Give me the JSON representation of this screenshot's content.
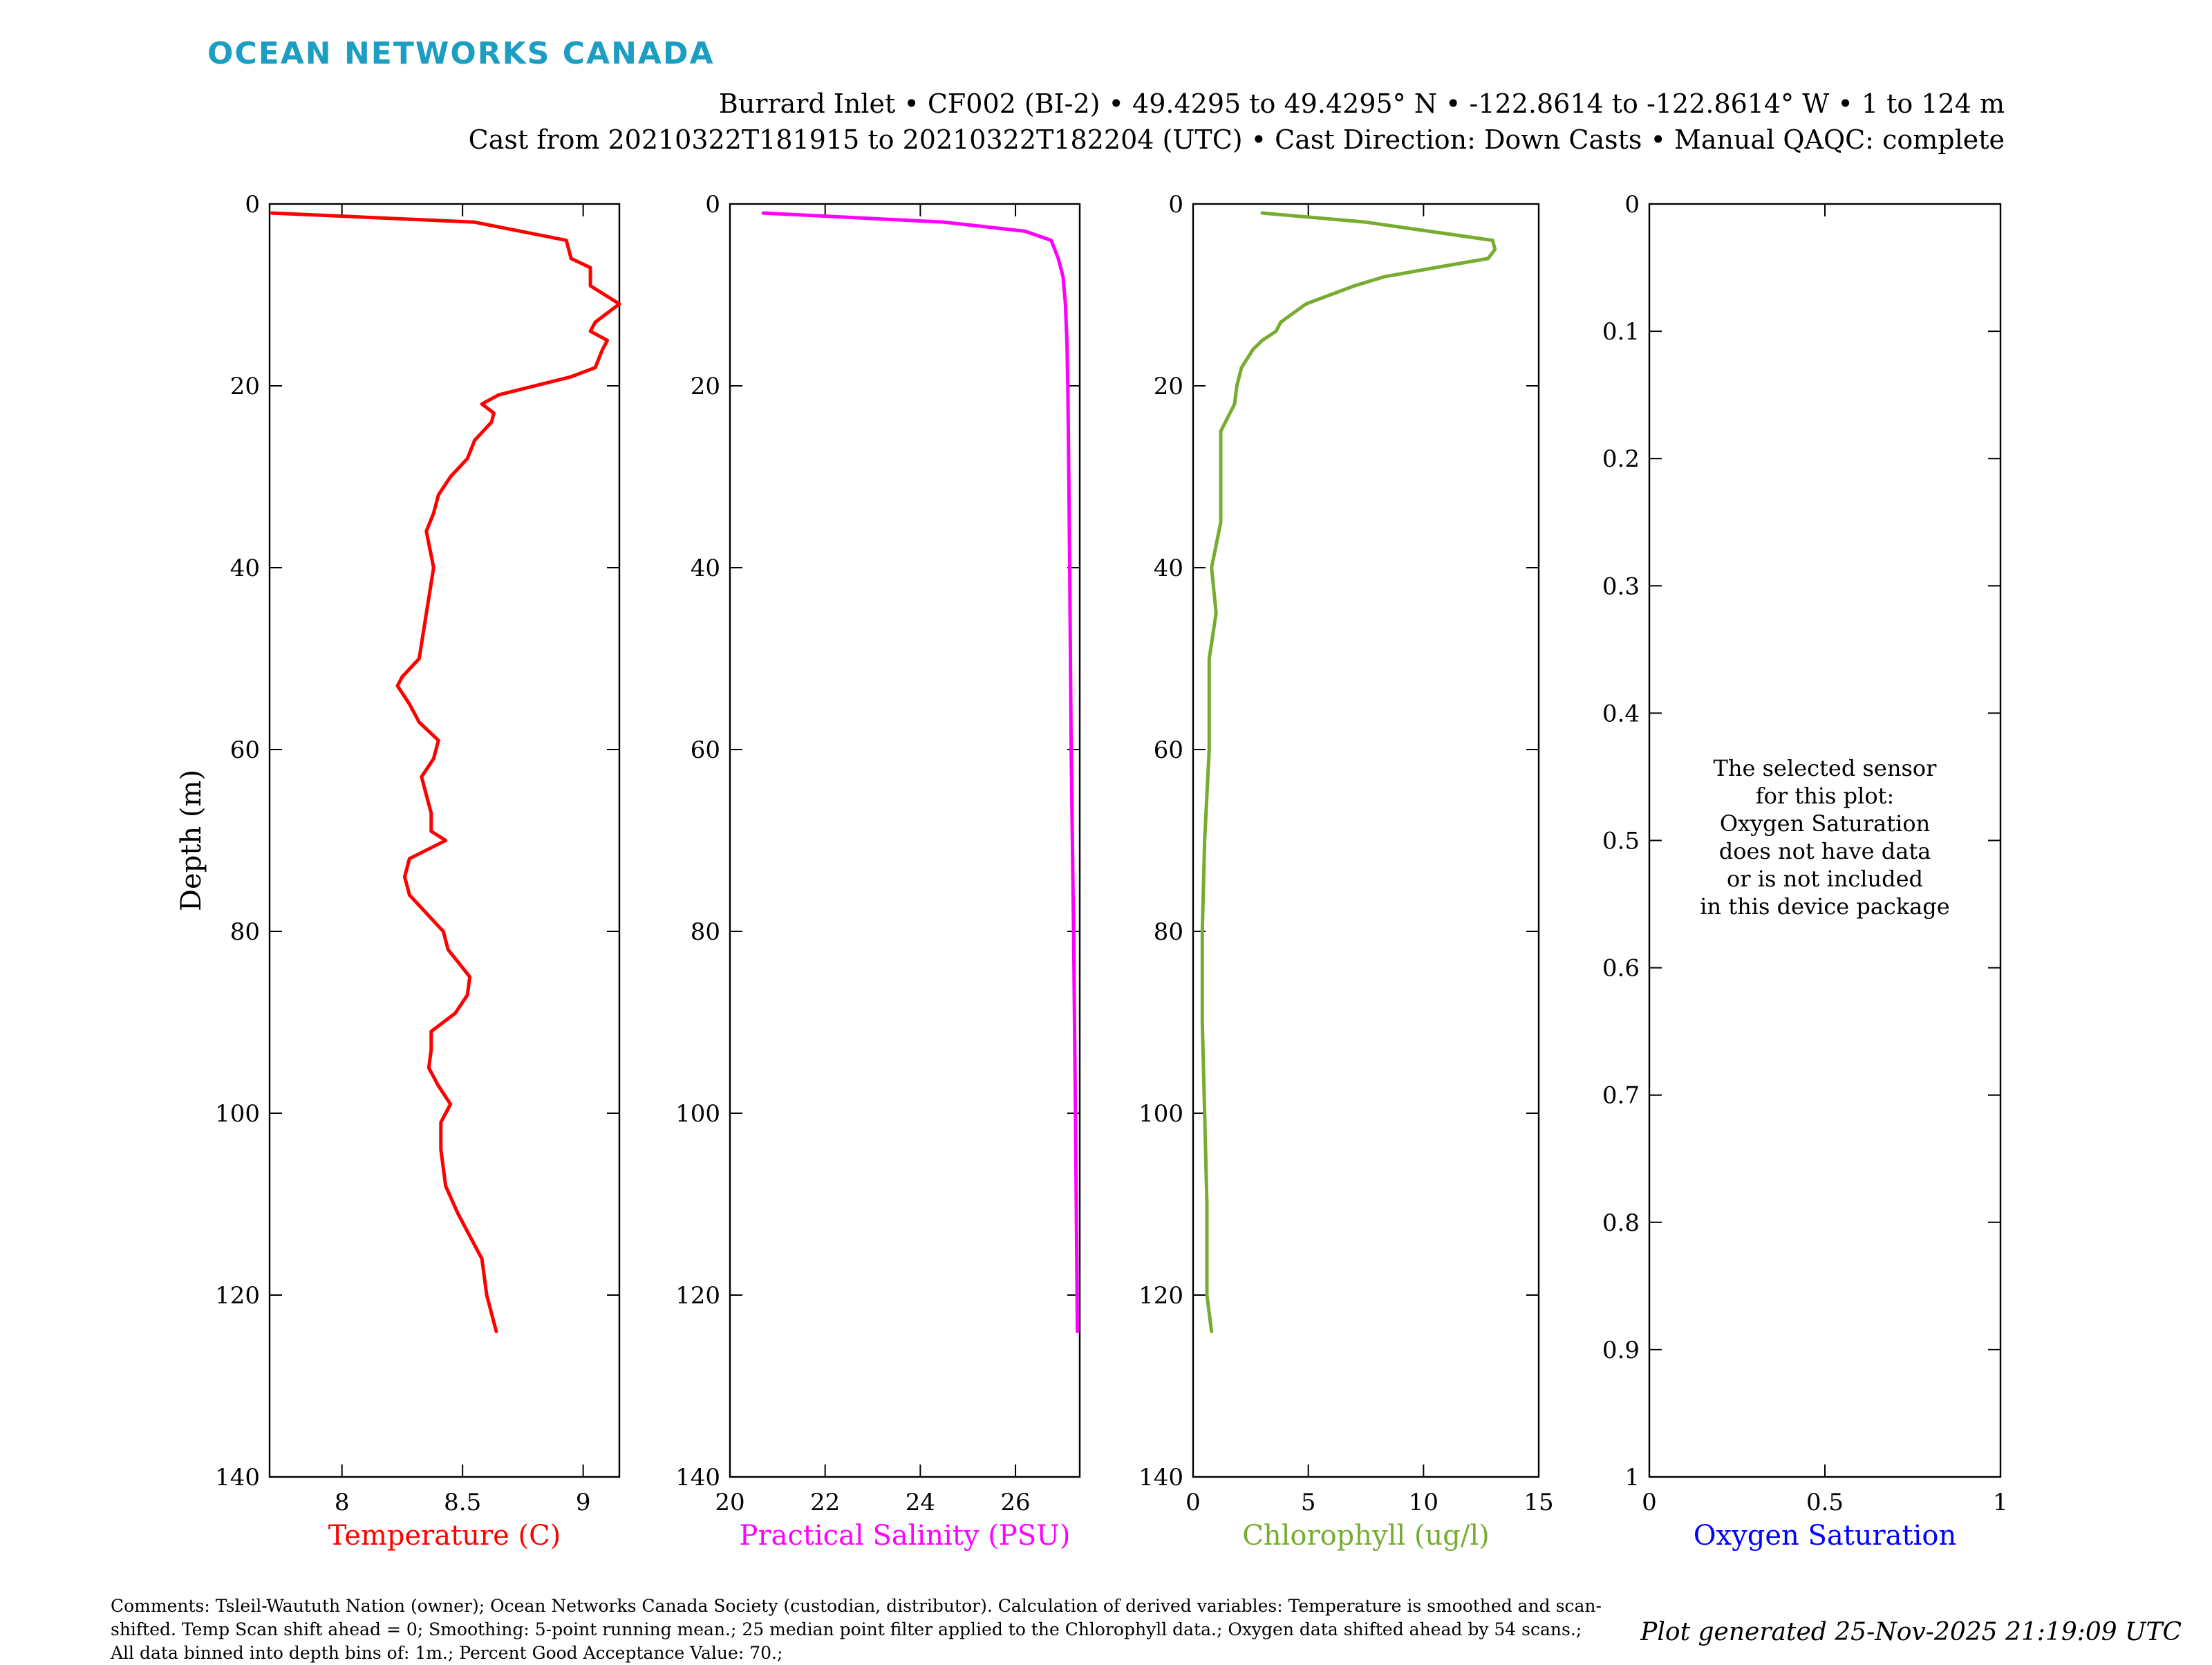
{
  "header": {
    "brand": "OCEAN NETWORKS CANADA",
    "line1": "Burrard Inlet • CF002 (BI-2) • 49.4295 to 49.4295° N • -122.8614 to -122.8614° W • 1 to 124 m",
    "line2": "Cast from 20210322T181915 to 20210322T182204 (UTC) • Cast Direction: Down Casts • Manual QAQC: complete"
  },
  "footer": {
    "comments": "Comments: Tsleil-Waututh Nation (owner); Ocean Networks Canada Society (custodian, distributor). Calculation of derived variables: Temperature is smoothed and scan-shifted. Temp Scan shift ahead = 0; Smoothing: 5-point running mean.; 25 median point filter applied to the Chlorophyll data.; Oxygen data shifted ahead by 54 scans.; All data binned into depth bins of: 1m.; Percent Good Acceptance Value: 70.;",
    "generated": "Plot generated 25-Nov-2025 21:19:09 UTC"
  },
  "colors": {
    "temperature": "#ff0000",
    "salinity": "#ff00ff",
    "chlorophyll": "#77ac30",
    "oxygen": "#0000ff",
    "brand": "#1c9dc2"
  },
  "chart_data": [
    {
      "type": "line",
      "xlabel": "Temperature (C)",
      "ylabel": "Depth (m)",
      "xlim": [
        7.7,
        9.15
      ],
      "ylim": [
        140,
        0
      ],
      "x_ticks": [
        "8",
        "8.5",
        "9"
      ],
      "x_tick_values": [
        8,
        8.5,
        9
      ],
      "y_ticks": [
        "0",
        "20",
        "40",
        "60",
        "80",
        "100",
        "120",
        "140"
      ],
      "y_tick_values": [
        0,
        20,
        40,
        60,
        80,
        100,
        120,
        140
      ],
      "color": "#ff0000",
      "y": [
        1,
        2,
        4,
        6,
        7,
        9,
        11,
        13,
        14,
        15,
        16,
        18,
        19,
        21,
        22,
        23,
        24,
        26,
        28,
        30,
        32,
        34,
        36,
        40,
        45,
        50,
        52,
        53,
        55,
        57,
        59,
        61,
        63,
        65,
        67,
        69,
        70,
        72,
        74,
        76,
        78,
        80,
        82,
        84,
        85,
        87,
        89,
        91,
        93,
        95,
        97,
        99,
        101,
        104,
        108,
        111,
        114,
        116,
        118,
        120,
        122,
        124
      ],
      "x": [
        7.71,
        8.55,
        8.93,
        8.95,
        9.03,
        9.03,
        9.15,
        9.05,
        9.03,
        9.1,
        9.08,
        9.05,
        8.95,
        8.65,
        8.58,
        8.63,
        8.62,
        8.55,
        8.52,
        8.45,
        8.4,
        8.38,
        8.35,
        8.38,
        8.35,
        8.32,
        8.25,
        8.23,
        8.28,
        8.32,
        8.4,
        8.38,
        8.33,
        8.35,
        8.37,
        8.37,
        8.43,
        8.28,
        8.26,
        8.28,
        8.35,
        8.42,
        8.44,
        8.5,
        8.53,
        8.52,
        8.47,
        8.37,
        8.37,
        8.36,
        8.4,
        8.45,
        8.41,
        8.41,
        8.43,
        8.48,
        8.54,
        8.58,
        8.59,
        8.6,
        8.62,
        8.64
      ]
    },
    {
      "type": "line",
      "xlabel": "Practical Salinity (PSU)",
      "ylabel": "",
      "xlim": [
        20,
        27.35
      ],
      "ylim": [
        140,
        0
      ],
      "x_ticks": [
        "20",
        "22",
        "24",
        "26"
      ],
      "x_tick_values": [
        20,
        22,
        24,
        26
      ],
      "y_ticks": [
        "0",
        "20",
        "40",
        "60",
        "80",
        "100",
        "120",
        "140"
      ],
      "y_tick_values": [
        0,
        20,
        40,
        60,
        80,
        100,
        120,
        140
      ],
      "color": "#ff00ff",
      "y": [
        1,
        2,
        3,
        4,
        6,
        8,
        11,
        15,
        20,
        30,
        40,
        60,
        80,
        100,
        124
      ],
      "x": [
        20.7,
        24.5,
        26.2,
        26.75,
        26.9,
        27.0,
        27.05,
        27.08,
        27.1,
        27.12,
        27.14,
        27.17,
        27.22,
        27.26,
        27.3
      ]
    },
    {
      "type": "line",
      "xlabel": "Chlorophyll (ug/l)",
      "ylabel": "",
      "xlim": [
        0,
        15
      ],
      "ylim": [
        140,
        0
      ],
      "x_ticks": [
        "0",
        "5",
        "10",
        "15"
      ],
      "x_tick_values": [
        0,
        5,
        10,
        15
      ],
      "y_ticks": [
        "0",
        "20",
        "40",
        "60",
        "80",
        "100",
        "120",
        "140"
      ],
      "y_tick_values": [
        0,
        20,
        40,
        60,
        80,
        100,
        120,
        140
      ],
      "color": "#77ac30",
      "y": [
        1,
        2,
        4,
        5,
        6,
        7,
        8,
        9,
        11,
        13,
        14,
        15,
        16,
        18,
        20,
        22,
        25,
        28,
        30,
        35,
        40,
        45,
        50,
        60,
        70,
        80,
        90,
        100,
        110,
        120,
        124
      ],
      "x": [
        3.0,
        7.5,
        13.0,
        13.1,
        12.8,
        10.5,
        8.3,
        7.0,
        4.9,
        3.8,
        3.6,
        3.0,
        2.6,
        2.1,
        1.9,
        1.8,
        1.2,
        1.2,
        1.2,
        1.2,
        0.8,
        1.0,
        0.7,
        0.7,
        0.5,
        0.4,
        0.4,
        0.5,
        0.6,
        0.6,
        0.8
      ]
    },
    {
      "type": "line",
      "xlabel": "Oxygen Saturation",
      "ylabel": "",
      "xlim": [
        0,
        1
      ],
      "ylim": [
        1,
        0
      ],
      "x_ticks": [
        "0",
        "0.5",
        "1"
      ],
      "x_tick_values": [
        0,
        0.5,
        1
      ],
      "y_ticks": [
        "0",
        "0.1",
        "0.2",
        "0.3",
        "0.4",
        "0.5",
        "0.6",
        "0.7",
        "0.8",
        "0.9",
        "1"
      ],
      "y_tick_values": [
        0,
        0.1,
        0.2,
        0.3,
        0.4,
        0.5,
        0.6,
        0.7,
        0.8,
        0.9,
        1
      ],
      "color": "#0000ff",
      "x": [],
      "y": [],
      "annotation": [
        "The selected sensor",
        "for this plot:",
        "Oxygen Saturation",
        "does not have data",
        "or is not included",
        "in this device package"
      ]
    }
  ]
}
